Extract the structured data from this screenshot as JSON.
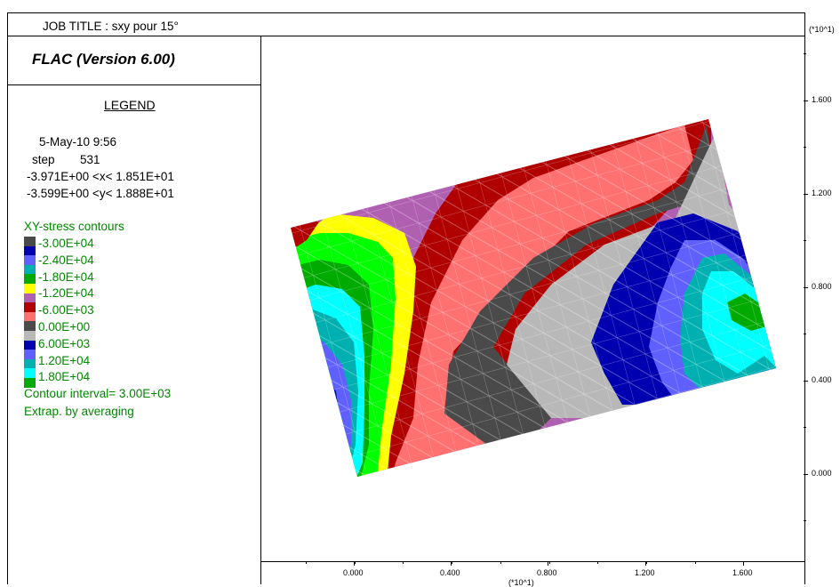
{
  "header": {
    "job_title": "JOB TITLE : sxy pour 15°",
    "software": "FLAC (Version 6.00)"
  },
  "legend": {
    "heading": "LEGEND",
    "date_time": "5-May-10  9:56",
    "step_label": "step",
    "step_value": "531",
    "x_range": "-3.971E+00 <x<  1.851E+01",
    "y_range": "-3.599E+00 <y<  1.888E+01",
    "contour_title": "XY-stress contours",
    "levels": [
      {
        "label": "-3.00E+04",
        "color": "#4a4a4a"
      },
      {
        "label": "-2.40E+04",
        "color": "#0000b0"
      },
      {
        "label": "-1.80E+04",
        "color": "#6060ff"
      },
      {
        "label": "-1.20E+04",
        "color": "#00b0b0"
      },
      {
        "label": "-6.00E+03",
        "color": "#00ffff"
      },
      {
        "label": "0.00E+00",
        "color": "#009900"
      },
      {
        "label": "6.00E+03",
        "color": "#00ff00"
      },
      {
        "label": "1.20E+04",
        "color": "#ffff00"
      },
      {
        "label": "1.80E+04",
        "color": "#b060b0"
      }
    ],
    "extra_swatches": [
      "#b00000",
      "#ff7070",
      "#4a4a4a",
      "#b8b8b8",
      "#0000b0",
      "#6060ff",
      "#00b0b0",
      "#00ffff",
      "#00aa00"
    ],
    "contour_interval": "Contour interval=  3.00E+03",
    "extrapolation": "Extrap. by averaging"
  },
  "axes": {
    "x_ticks": [
      "0.000",
      "0.400",
      "0.800",
      "1.200",
      "1.600"
    ],
    "x_multiplier": "(*10^1)",
    "y_ticks": [
      "1.600",
      "1.200",
      "0.800",
      "0.400",
      "0.000"
    ],
    "y_multiplier": "(*10^1)"
  },
  "colors": {
    "dark_red": "#b00000",
    "salmon": "#ff7070",
    "purple": "#b060b0",
    "dark_gray": "#4a4a4a",
    "light_gray": "#b8b8b8",
    "navy": "#0000b0",
    "blue": "#6060ff",
    "teal": "#00b0b0",
    "cyan": "#00ffff",
    "green": "#00aa00",
    "lime": "#00ff00",
    "yellow": "#ffff00"
  }
}
